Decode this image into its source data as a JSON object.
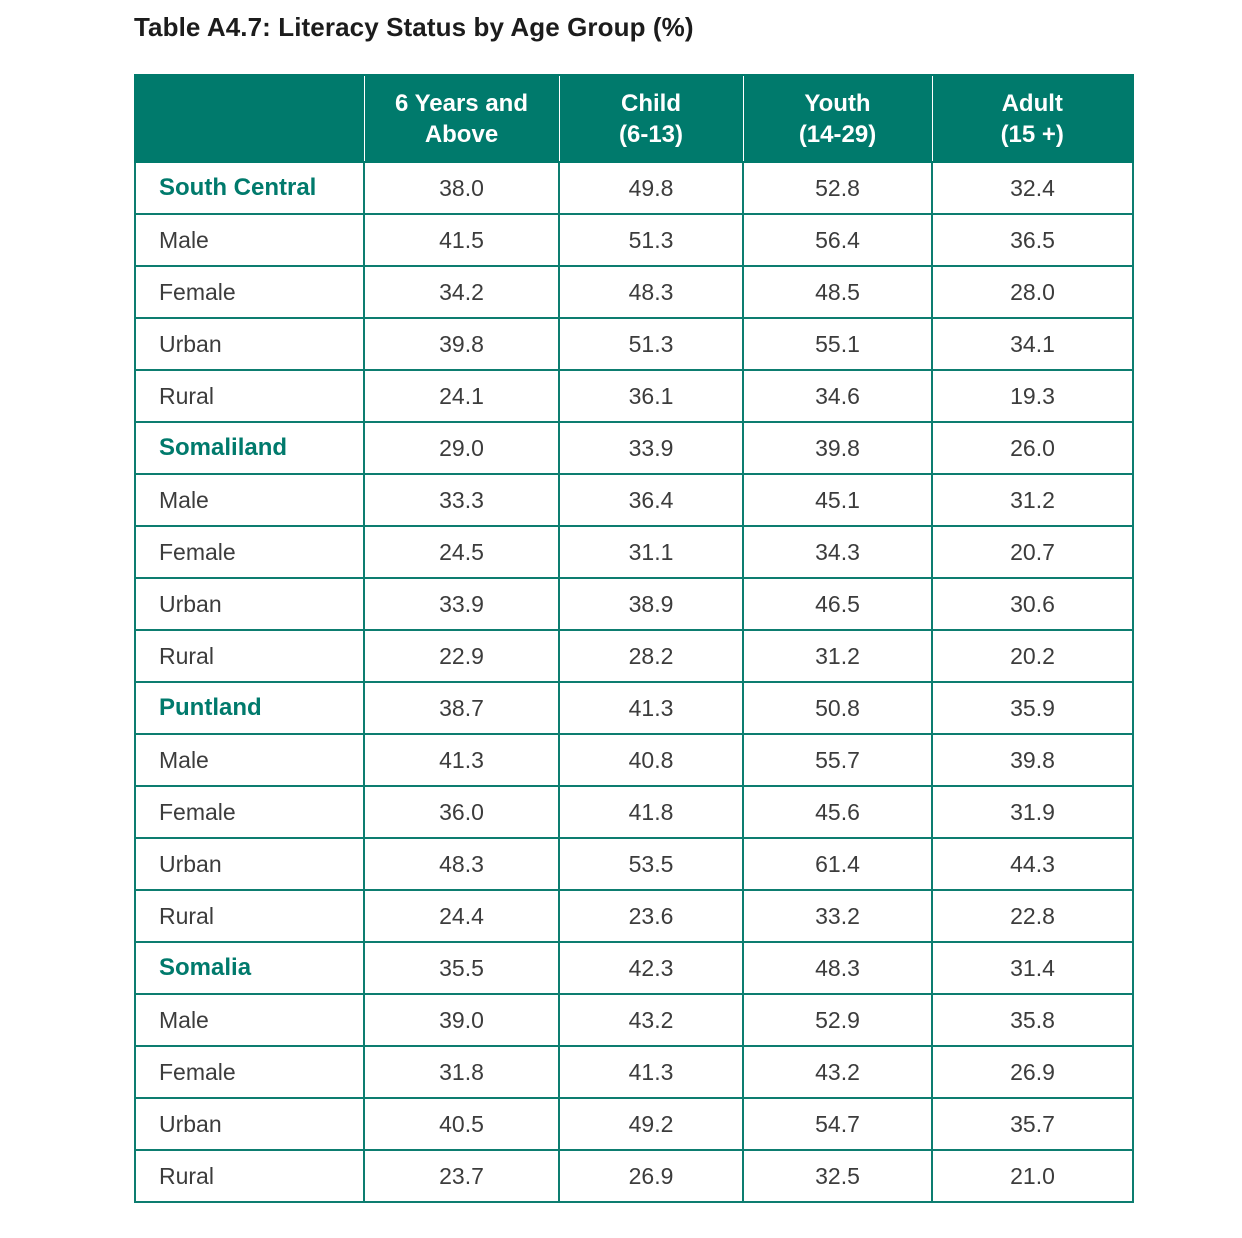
{
  "title": "Table A4.7: Literacy Status by Age Group (%)",
  "colors": {
    "header_bg": "#007a6c",
    "region_text": "#007a6c",
    "border": "#0d7d70"
  },
  "columns": [
    "",
    "6 Years and\nAbove",
    "Child\n(6-13)",
    "Youth\n(14-29)",
    "Adult\n(15 +)"
  ],
  "rows": [
    {
      "label": "South Central",
      "type": "region",
      "values": [
        "38.0",
        "49.8",
        "52.8",
        "32.4"
      ]
    },
    {
      "label": "Male",
      "type": "sub",
      "values": [
        "41.5",
        "51.3",
        "56.4",
        "36.5"
      ]
    },
    {
      "label": "Female",
      "type": "sub",
      "values": [
        "34.2",
        "48.3",
        "48.5",
        "28.0"
      ]
    },
    {
      "label": "Urban",
      "type": "sub",
      "values": [
        "39.8",
        "51.3",
        "55.1",
        "34.1"
      ]
    },
    {
      "label": "Rural",
      "type": "sub",
      "values": [
        "24.1",
        "36.1",
        "34.6",
        "19.3"
      ]
    },
    {
      "label": "Somaliland",
      "type": "region",
      "values": [
        "29.0",
        "33.9",
        "39.8",
        "26.0"
      ]
    },
    {
      "label": "Male",
      "type": "sub",
      "values": [
        "33.3",
        "36.4",
        "45.1",
        "31.2"
      ]
    },
    {
      "label": "Female",
      "type": "sub",
      "values": [
        "24.5",
        "31.1",
        "34.3",
        "20.7"
      ]
    },
    {
      "label": "Urban",
      "type": "sub",
      "values": [
        "33.9",
        "38.9",
        "46.5",
        "30.6"
      ]
    },
    {
      "label": "Rural",
      "type": "sub",
      "values": [
        "22.9",
        "28.2",
        "31.2",
        "20.2"
      ]
    },
    {
      "label": "Puntland",
      "type": "region",
      "values": [
        "38.7",
        "41.3",
        "50.8",
        "35.9"
      ]
    },
    {
      "label": "Male",
      "type": "sub",
      "values": [
        "41.3",
        "40.8",
        "55.7",
        "39.8"
      ]
    },
    {
      "label": "Female",
      "type": "sub",
      "values": [
        "36.0",
        "41.8",
        "45.6",
        "31.9"
      ]
    },
    {
      "label": "Urban",
      "type": "sub",
      "values": [
        "48.3",
        "53.5",
        "61.4",
        "44.3"
      ]
    },
    {
      "label": "Rural",
      "type": "sub",
      "values": [
        "24.4",
        "23.6",
        "33.2",
        "22.8"
      ]
    },
    {
      "label": "Somalia",
      "type": "region",
      "values": [
        "35.5",
        "42.3",
        "48.3",
        "31.4"
      ]
    },
    {
      "label": "Male",
      "type": "sub",
      "values": [
        "39.0",
        "43.2",
        "52.9",
        "35.8"
      ]
    },
    {
      "label": "Female",
      "type": "sub",
      "values": [
        "31.8",
        "41.3",
        "43.2",
        "26.9"
      ]
    },
    {
      "label": "Urban",
      "type": "sub",
      "values": [
        "40.5",
        "49.2",
        "54.7",
        "35.7"
      ]
    },
    {
      "label": "Rural",
      "type": "sub",
      "values": [
        "23.7",
        "26.9",
        "32.5",
        "21.0"
      ]
    }
  ]
}
